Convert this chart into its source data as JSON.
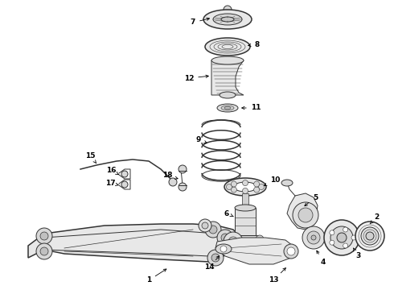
{
  "bg_color": "#ffffff",
  "line_color": "#333333",
  "label_color": "#000000",
  "fig_width": 4.9,
  "fig_height": 3.6,
  "dpi": 100,
  "lw": 0.7,
  "lw_thick": 1.1
}
